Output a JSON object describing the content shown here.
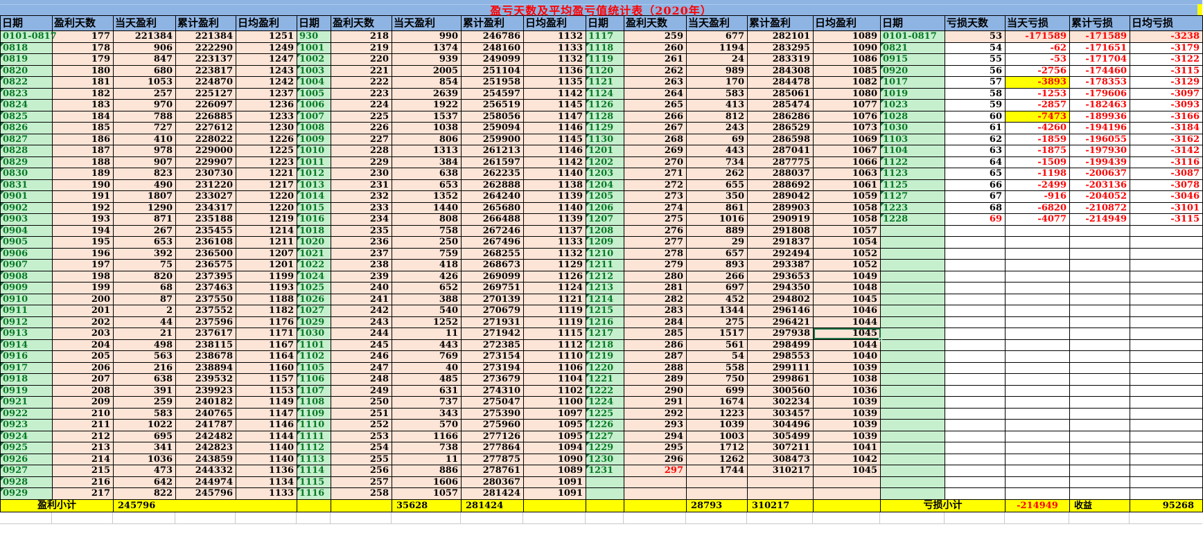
{
  "title": "盈亏天数及平均盈亏值统计表（2020年）",
  "columns": {
    "profit": [
      "日期",
      "盈利天数",
      "当天盈利",
      "累计盈利",
      "日均盈利"
    ],
    "loss": [
      "日期",
      "亏损天数",
      "当天亏损",
      "累计亏损",
      "日均亏损"
    ]
  },
  "groups": [
    {
      "type": "profit",
      "rows": [
        [
          "0101-0817",
          "177",
          "221384",
          "221384",
          "1251"
        ],
        [
          "0818",
          "178",
          "906",
          "222290",
          "1249"
        ],
        [
          "0819",
          "179",
          "847",
          "223137",
          "1247"
        ],
        [
          "0820",
          "180",
          "680",
          "223817",
          "1243"
        ],
        [
          "0822",
          "181",
          "1053",
          "224870",
          "1242"
        ],
        [
          "0823",
          "182",
          "257",
          "225127",
          "1237"
        ],
        [
          "0824",
          "183",
          "970",
          "226097",
          "1236"
        ],
        [
          "0825",
          "184",
          "788",
          "226885",
          "1233"
        ],
        [
          "0826",
          "185",
          "727",
          "227612",
          "1230"
        ],
        [
          "0827",
          "186",
          "410",
          "228022",
          "1226"
        ],
        [
          "0828",
          "187",
          "978",
          "229000",
          "1225"
        ],
        [
          "0829",
          "188",
          "907",
          "229907",
          "1223"
        ],
        [
          "0830",
          "189",
          "823",
          "230730",
          "1221"
        ],
        [
          "0831",
          "190",
          "490",
          "231220",
          "1217"
        ],
        [
          "0901",
          "191",
          "1807",
          "233027",
          "1220"
        ],
        [
          "0902",
          "192",
          "1290",
          "234317",
          "1220"
        ],
        [
          "0903",
          "193",
          "871",
          "235188",
          "1219"
        ],
        [
          "0904",
          "194",
          "267",
          "235455",
          "1214"
        ],
        [
          "0905",
          "195",
          "653",
          "236108",
          "1211"
        ],
        [
          "0906",
          "196",
          "392",
          "236500",
          "1207"
        ],
        [
          "0907",
          "197",
          "75",
          "236575",
          "1201"
        ],
        [
          "0908",
          "198",
          "820",
          "237395",
          "1199"
        ],
        [
          "0909",
          "199",
          "68",
          "237463",
          "1193"
        ],
        [
          "0910",
          "200",
          "87",
          "237550",
          "1188"
        ],
        [
          "0911",
          "201",
          "2",
          "237552",
          "1182"
        ],
        [
          "0912",
          "202",
          "44",
          "237596",
          "1176"
        ],
        [
          "0913",
          "203",
          "21",
          "237617",
          "1171"
        ],
        [
          "0914",
          "204",
          "498",
          "238115",
          "1167"
        ],
        [
          "0916",
          "205",
          "563",
          "238678",
          "1164"
        ],
        [
          "0917",
          "206",
          "216",
          "238894",
          "1160"
        ],
        [
          "0918",
          "207",
          "638",
          "239532",
          "1157"
        ],
        [
          "0919",
          "208",
          "391",
          "239923",
          "1153"
        ],
        [
          "0921",
          "209",
          "259",
          "240182",
          "1149"
        ],
        [
          "0922",
          "210",
          "583",
          "240765",
          "1147"
        ],
        [
          "0923",
          "211",
          "1022",
          "241787",
          "1146"
        ],
        [
          "0924",
          "212",
          "695",
          "242482",
          "1144"
        ],
        [
          "0925",
          "213",
          "341",
          "242823",
          "1140"
        ],
        [
          "0926",
          "214",
          "1036",
          "243859",
          "1140"
        ],
        [
          "0927",
          "215",
          "473",
          "244332",
          "1136"
        ],
        [
          "0928",
          "216",
          "642",
          "244974",
          "1134"
        ],
        [
          "0929",
          "217",
          "822",
          "245796",
          "1133"
        ]
      ]
    },
    {
      "type": "profit",
      "rows": [
        [
          "930",
          "218",
          "990",
          "246786",
          "1132"
        ],
        [
          "1001",
          "219",
          "1374",
          "248160",
          "1133"
        ],
        [
          "1002",
          "220",
          "939",
          "249099",
          "1132"
        ],
        [
          "1003",
          "221",
          "2005",
          "251104",
          "1136"
        ],
        [
          "1004",
          "222",
          "854",
          "251958",
          "1135"
        ],
        [
          "1005",
          "223",
          "2639",
          "254597",
          "1142"
        ],
        [
          "1006",
          "224",
          "1922",
          "256519",
          "1145"
        ],
        [
          "1007",
          "225",
          "1537",
          "258056",
          "1147"
        ],
        [
          "1008",
          "226",
          "1038",
          "259094",
          "1146"
        ],
        [
          "1009",
          "227",
          "806",
          "259900",
          "1145"
        ],
        [
          "1010",
          "228",
          "1313",
          "261213",
          "1146"
        ],
        [
          "1011",
          "229",
          "384",
          "261597",
          "1142"
        ],
        [
          "1012",
          "230",
          "638",
          "262235",
          "1140"
        ],
        [
          "1013",
          "231",
          "653",
          "262888",
          "1138"
        ],
        [
          "1014",
          "232",
          "1352",
          "264240",
          "1139"
        ],
        [
          "1015",
          "233",
          "1440",
          "265680",
          "1140"
        ],
        [
          "1016",
          "234",
          "808",
          "266488",
          "1139"
        ],
        [
          "1018",
          "235",
          "758",
          "267246",
          "1137"
        ],
        [
          "1020",
          "236",
          "250",
          "267496",
          "1133"
        ],
        [
          "1021",
          "237",
          "759",
          "268255",
          "1132"
        ],
        [
          "1022",
          "238",
          "418",
          "268673",
          "1129"
        ],
        [
          "1024",
          "239",
          "426",
          "269099",
          "1126"
        ],
        [
          "1025",
          "240",
          "652",
          "269751",
          "1124"
        ],
        [
          "1026",
          "241",
          "388",
          "270139",
          "1121"
        ],
        [
          "1027",
          "242",
          "540",
          "270679",
          "1119"
        ],
        [
          "1029",
          "243",
          "1252",
          "271931",
          "1119"
        ],
        [
          "1030",
          "244",
          "11",
          "271942",
          "1115"
        ],
        [
          "1101",
          "245",
          "443",
          "272385",
          "1112"
        ],
        [
          "1102",
          "246",
          "769",
          "273154",
          "1110"
        ],
        [
          "1105",
          "247",
          "40",
          "273194",
          "1106"
        ],
        [
          "1106",
          "248",
          "485",
          "273679",
          "1104"
        ],
        [
          "1107",
          "249",
          "631",
          "274310",
          "1102"
        ],
        [
          "1108",
          "250",
          "737",
          "275047",
          "1100"
        ],
        [
          "1109",
          "251",
          "343",
          "275390",
          "1097"
        ],
        [
          "1110",
          "252",
          "570",
          "275960",
          "1095"
        ],
        [
          "1111",
          "253",
          "1166",
          "277126",
          "1095"
        ],
        [
          "1112",
          "254",
          "738",
          "277864",
          "1094"
        ],
        [
          "1113",
          "255",
          "11",
          "277875",
          "1090"
        ],
        [
          "1114",
          "256",
          "886",
          "278761",
          "1089"
        ],
        [
          "1115",
          "257",
          "1606",
          "280367",
          "1091"
        ],
        [
          "1116",
          "258",
          "1057",
          "281424",
          "1091"
        ]
      ]
    },
    {
      "type": "profit",
      "rows": [
        [
          "1117",
          "259",
          "677",
          "282101",
          "1089"
        ],
        [
          "1118",
          "260",
          "1194",
          "283295",
          "1090"
        ],
        [
          "1119",
          "261",
          "24",
          "283319",
          "1086"
        ],
        [
          "1120",
          "262",
          "989",
          "284308",
          "1085"
        ],
        [
          "1121",
          "263",
          "170",
          "284478",
          "1082"
        ],
        [
          "1124",
          "264",
          "583",
          "285061",
          "1080"
        ],
        [
          "1126",
          "265",
          "413",
          "285474",
          "1077"
        ],
        [
          "1128",
          "266",
          "812",
          "286286",
          "1076"
        ],
        [
          "1129",
          "267",
          "243",
          "286529",
          "1073"
        ],
        [
          "1130",
          "268",
          "69",
          "286598",
          "1069"
        ],
        [
          "1201",
          "269",
          "443",
          "287041",
          "1067"
        ],
        [
          "1202",
          "270",
          "734",
          "287775",
          "1066"
        ],
        [
          "1203",
          "271",
          "262",
          "288037",
          "1063"
        ],
        [
          "1204",
          "272",
          "655",
          "288692",
          "1061"
        ],
        [
          "1205",
          "273",
          "350",
          "289042",
          "1059"
        ],
        [
          "1206",
          "274",
          "861",
          "289903",
          "1058"
        ],
        [
          "1207",
          "275",
          "1016",
          "290919",
          "1058"
        ],
        [
          "1208",
          "276",
          "889",
          "291808",
          "1057"
        ],
        [
          "1209",
          "277",
          "29",
          "291837",
          "1054"
        ],
        [
          "1210",
          "278",
          "657",
          "292494",
          "1052"
        ],
        [
          "1211",
          "279",
          "893",
          "293387",
          "1052"
        ],
        [
          "1212",
          "280",
          "266",
          "293653",
          "1049"
        ],
        [
          "1213",
          "281",
          "697",
          "294350",
          "1048"
        ],
        [
          "1214",
          "282",
          "452",
          "294802",
          "1045"
        ],
        [
          "1215",
          "283",
          "1344",
          "296146",
          "1046"
        ],
        [
          "1216",
          "284",
          "275",
          "296421",
          "1044"
        ],
        [
          "1217",
          "285",
          "1517",
          "297938",
          "1045"
        ],
        [
          "1218",
          "286",
          "561",
          "298499",
          "1044"
        ],
        [
          "1219",
          "287",
          "54",
          "298553",
          "1040"
        ],
        [
          "1220",
          "288",
          "558",
          "299111",
          "1039"
        ],
        [
          "1221",
          "289",
          "750",
          "299861",
          "1038"
        ],
        [
          "1222",
          "290",
          "699",
          "300560",
          "1036"
        ],
        [
          "1224",
          "291",
          "1674",
          "302234",
          "1039"
        ],
        [
          "1225",
          "292",
          "1223",
          "303457",
          "1039"
        ],
        [
          "1226",
          "293",
          "1039",
          "304496",
          "1039"
        ],
        [
          "1227",
          "294",
          "1003",
          "305499",
          "1039"
        ],
        [
          "1229",
          "295",
          "1712",
          "307211",
          "1041"
        ],
        [
          "1230",
          "296",
          "1262",
          "308473",
          "1042"
        ],
        [
          "1231",
          "297",
          "1744",
          "310217",
          "1045"
        ],
        [
          "",
          "",
          "",
          "",
          ""
        ],
        [
          "",
          "",
          "",
          "",
          ""
        ]
      ]
    },
    {
      "type": "loss",
      "rows": [
        [
          "0101-0817",
          "53",
          "-171589",
          "-171589",
          "-3238"
        ],
        [
          "0821",
          "54",
          "-62",
          "-171651",
          "-3179"
        ],
        [
          "0915",
          "55",
          "-53",
          "-171704",
          "-3122"
        ],
        [
          "0920",
          "56",
          "-2756",
          "-174460",
          "-3115"
        ],
        [
          "1017",
          "57",
          "-3893",
          "-178353",
          "-3129"
        ],
        [
          "1019",
          "58",
          "-1253",
          "-179606",
          "-3097"
        ],
        [
          "1023",
          "59",
          "-2857",
          "-182463",
          "-3093"
        ],
        [
          "1028",
          "60",
          "-7473",
          "-189936",
          "-3166"
        ],
        [
          "1030",
          "61",
          "-4260",
          "-194196",
          "-3184"
        ],
        [
          "1103",
          "62",
          "-1859",
          "-196055",
          "-3162"
        ],
        [
          "1104",
          "63",
          "-1875",
          "-197930",
          "-3142"
        ],
        [
          "1122",
          "64",
          "-1509",
          "-199439",
          "-3116"
        ],
        [
          "1123",
          "65",
          "-1198",
          "-200637",
          "-3087"
        ],
        [
          "1125",
          "66",
          "-2499",
          "-203136",
          "-3078"
        ],
        [
          "1127",
          "67",
          "-916",
          "-204052",
          "-3046"
        ],
        [
          "1223",
          "68",
          "-6820",
          "-210872",
          "-3101"
        ],
        [
          "1228",
          "69",
          "-4077",
          "-214949",
          "-3115"
        ]
      ]
    }
  ],
  "summary": {
    "profit_label": "盈利小计",
    "profit_daily_total": "245796",
    "g2_daily_total": "35628",
    "g2_cum_total": "281424",
    "g3_daily_total": "28793",
    "g3_cum_total": "310217",
    "loss_label": "亏损小计",
    "loss_total": "-214949",
    "income_label": "收益",
    "income_value": "95268"
  },
  "special": {
    "selected_cell": {
      "group": 2,
      "row": 26,
      "col": 4
    },
    "yellow_cells": [
      {
        "group": 3,
        "row": 4,
        "col": 2
      },
      {
        "group": 3,
        "row": 7,
        "col": 2
      }
    ],
    "red_text_cells": [
      {
        "group": 2,
        "row": 38,
        "col": 1
      },
      {
        "group": 3,
        "row": 16,
        "col": 1
      }
    ]
  },
  "colors": {
    "header_blue": "#8EB4E3",
    "cell_peach": "#FCE4D6",
    "date_green": "#C6EFCE",
    "date_text": "#077A25",
    "title_red": "#FF0000",
    "loss_red": "#FF0000",
    "highlight_yellow": "#FFFF00",
    "selection_green": "#1E7145"
  }
}
